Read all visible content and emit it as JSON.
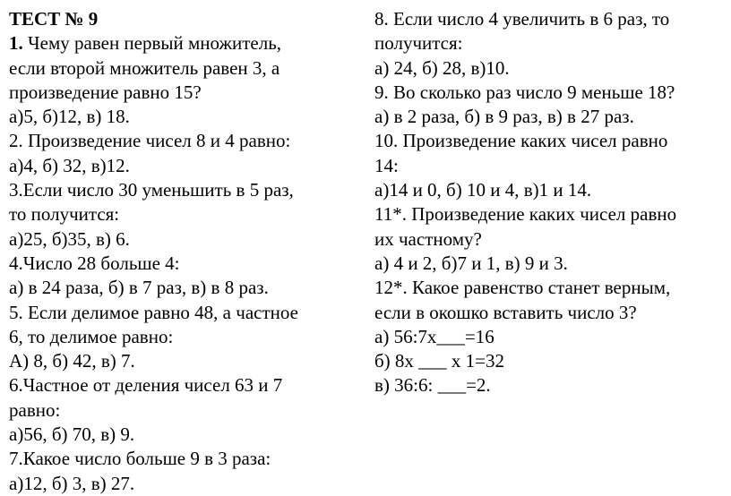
{
  "header": "ТЕСТ   № 9",
  "left": {
    "q1": {
      "num": "1.",
      "l1": " Чему равен первый множитель,",
      "l2": "если второй множитель равен 3, а",
      "l3": "произведение равно 15?",
      "ans": "а)5,     б)12,    в) 18."
    },
    "q2": {
      "l1": "2. Произведение чисел 8 и 4 равно:",
      "ans": "а)4,     б) 32,     в)12."
    },
    "q3": {
      "l1": "3.Если  число 30 уменьшить в 5 раз,",
      "l2": "то получится:",
      "ans": "а)25,     б)35,    в) 6."
    },
    "q4": {
      "l1": "4.Число 28 больше 4:",
      "ans": "а) в 24 раза,  б) в 7 раз,   в) в 8 раз."
    },
    "q5": {
      "l1": "5. Если делимое равно 48, а частное",
      "l2": "6, то делимое равно:",
      "ans": "  А)  8,     б) 42,    в) 7."
    },
    "q6": {
      "l1": "6.Частное от деления чисел 63 и 7",
      "l2": "равно:",
      "ans": "а)56,      б) 70,    в)  9."
    },
    "q7": {
      "l1": "7.Какое число больше 9 в 3 раза:",
      "ans": "а)12,    б)  3,   в)  27."
    }
  },
  "right": {
    "q8": {
      "l1": "8. Если число 4 увеличить в 6 раз, то",
      "l2": "получится:",
      "ans": " а) 24,     б) 28,     в)10."
    },
    "q9": {
      "l1": "9. Во сколько раз число 9 меньше 18?",
      "ans": "а) в 2 раза,   б) в 9 раз,  в) в 27 раз."
    },
    "q10": {
      "l1": "10. Произведение каких чисел равно",
      "l2": "14:",
      "ans": " а)14 и 0,     б) 10 и 4,     в)1 и 14."
    },
    "q11": {
      "l1": "11*. Произведение каких чисел равно",
      "l2": "их частному?",
      "ans": " а) 4 и 2,    б)7 и 1,    в) 9 и 3."
    },
    "q12": {
      "l1": "12*. Какое равенство станет верным,",
      "l2": "если в окошко вставить число 3?",
      "ans_a": "   а) 56:7х___=16",
      "ans_b": "   б) 8х ___ х 1=32",
      "ans_c": "   в) 36:6: ___=2."
    }
  }
}
